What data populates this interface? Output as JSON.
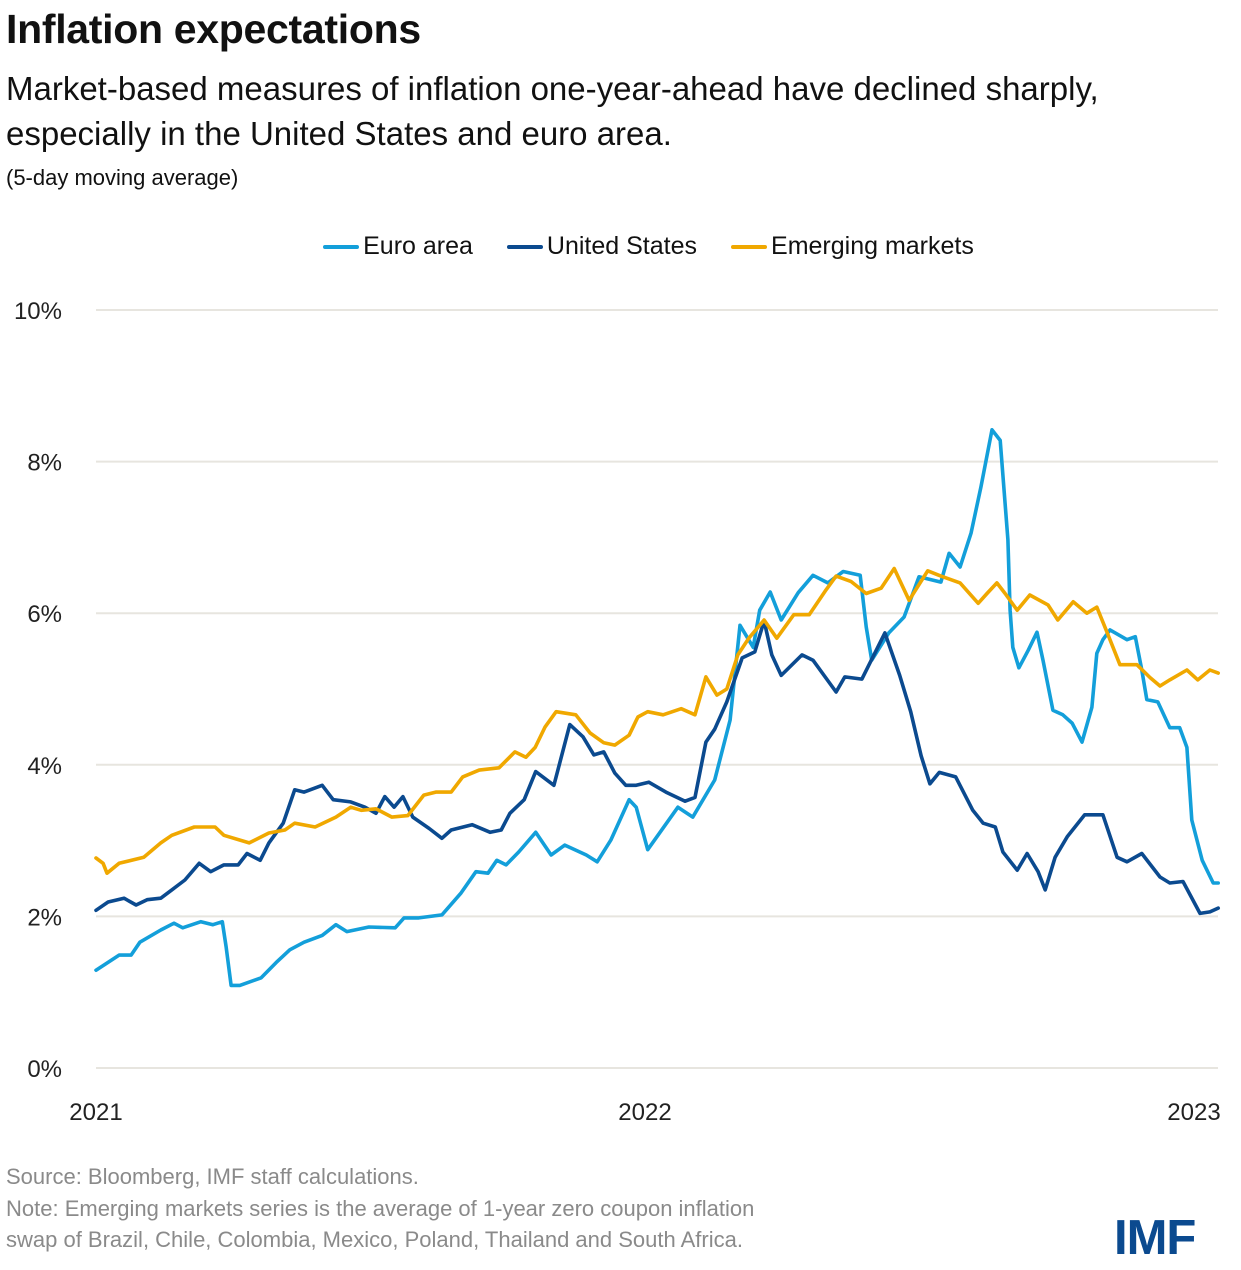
{
  "title": "Inflation expectations",
  "subtitle": "Market-based measures of inflation one-year-ahead have declined sharply, especially in the United States and euro area.",
  "note": "(5-day moving average)",
  "source": "Source: Bloomberg, IMF staff calculations.",
  "footnote_line1": "Note: Emerging markets series is the average of 1-year zero coupon inflation",
  "footnote_line2": "swap of Brazil, Chile, Colombia, Mexico, Poland, Thailand and South Africa.",
  "logo": "IMF",
  "legend": [
    {
      "label": "Euro area",
      "color": "#139fda"
    },
    {
      "label": "United States",
      "color": "#0b4a8f"
    },
    {
      "label": "Emerging markets",
      "color": "#f0a800"
    }
  ],
  "chart_data": {
    "type": "line",
    "title": "Inflation expectations",
    "xlabel": "",
    "ylabel": "",
    "x_ticks": [
      2021,
      2022,
      2023
    ],
    "x_tick_labels": [
      "2021",
      "2022",
      "2023"
    ],
    "xlim": [
      2021.0,
      2023.044
    ],
    "y_ticks": [
      0,
      2,
      4,
      6,
      8,
      10
    ],
    "y_tick_labels": [
      "0%",
      "2%",
      "4%",
      "6%",
      "8%",
      "10%"
    ],
    "ylim": [
      0,
      10
    ],
    "grid": "horizontal",
    "legend_position": "top",
    "series": [
      {
        "name": "Euro area",
        "color": "#139fda",
        "points": [
          [
            2021.0,
            1.29
          ],
          [
            2021.042,
            1.49
          ],
          [
            2021.064,
            1.49
          ],
          [
            2021.08,
            1.66
          ],
          [
            2021.118,
            1.82
          ],
          [
            2021.142,
            1.91
          ],
          [
            2021.158,
            1.85
          ],
          [
            2021.191,
            1.93
          ],
          [
            2021.213,
            1.89
          ],
          [
            2021.23,
            1.93
          ],
          [
            2021.237,
            1.6
          ],
          [
            2021.246,
            1.09
          ],
          [
            2021.262,
            1.09
          ],
          [
            2021.301,
            1.19
          ],
          [
            2021.328,
            1.39
          ],
          [
            2021.353,
            1.56
          ],
          [
            2021.379,
            1.66
          ],
          [
            2021.412,
            1.75
          ],
          [
            2021.437,
            1.89
          ],
          [
            2021.457,
            1.8
          ],
          [
            2021.497,
            1.86
          ],
          [
            2021.545,
            1.85
          ],
          [
            2021.561,
            1.98
          ],
          [
            2021.588,
            1.98
          ],
          [
            2021.63,
            2.02
          ],
          [
            2021.665,
            2.31
          ],
          [
            2021.692,
            2.59
          ],
          [
            2021.714,
            2.57
          ],
          [
            2021.73,
            2.74
          ],
          [
            2021.747,
            2.68
          ],
          [
            2021.77,
            2.85
          ],
          [
            2021.801,
            3.11
          ],
          [
            2021.829,
            2.81
          ],
          [
            2021.854,
            2.94
          ],
          [
            2021.893,
            2.81
          ],
          [
            2021.913,
            2.72
          ],
          [
            2021.938,
            3.01
          ],
          [
            2021.971,
            3.54
          ],
          [
            2021.984,
            3.44
          ],
          [
            2022.005,
            2.88
          ],
          [
            2022.06,
            3.44
          ],
          [
            2022.087,
            3.31
          ],
          [
            2022.127,
            3.8
          ],
          [
            2022.155,
            4.59
          ],
          [
            2022.173,
            5.84
          ],
          [
            2022.197,
            5.55
          ],
          [
            2022.209,
            6.04
          ],
          [
            2022.228,
            6.28
          ],
          [
            2022.248,
            5.91
          ],
          [
            2022.279,
            6.27
          ],
          [
            2022.306,
            6.5
          ],
          [
            2022.333,
            6.4
          ],
          [
            2022.361,
            6.55
          ],
          [
            2022.392,
            6.5
          ],
          [
            2022.403,
            5.82
          ],
          [
            2022.413,
            5.38
          ],
          [
            2022.444,
            5.74
          ],
          [
            2022.472,
            5.95
          ],
          [
            2022.499,
            6.48
          ],
          [
            2022.539,
            6.41
          ],
          [
            2022.554,
            6.79
          ],
          [
            2022.574,
            6.61
          ],
          [
            2022.594,
            7.06
          ],
          [
            2022.612,
            7.67
          ],
          [
            2022.632,
            8.42
          ],
          [
            2022.647,
            8.28
          ],
          [
            2022.661,
            6.97
          ],
          [
            2022.665,
            6.04
          ],
          [
            2022.67,
            5.55
          ],
          [
            2022.681,
            5.28
          ],
          [
            2022.698,
            5.51
          ],
          [
            2022.714,
            5.75
          ],
          [
            2022.725,
            5.38
          ],
          [
            2022.743,
            4.72
          ],
          [
            2022.761,
            4.66
          ],
          [
            2022.778,
            4.55
          ],
          [
            2022.796,
            4.3
          ],
          [
            2022.814,
            4.76
          ],
          [
            2022.823,
            5.47
          ],
          [
            2022.834,
            5.65
          ],
          [
            2022.847,
            5.78
          ],
          [
            2022.878,
            5.65
          ],
          [
            2022.893,
            5.69
          ],
          [
            2022.905,
            5.25
          ],
          [
            2022.914,
            4.86
          ],
          [
            2022.934,
            4.83
          ],
          [
            2022.956,
            4.49
          ],
          [
            2022.974,
            4.49
          ],
          [
            2022.987,
            4.23
          ],
          [
            2022.996,
            3.27
          ],
          [
            2023.015,
            2.74
          ],
          [
            2023.035,
            2.44
          ],
          [
            2023.044,
            2.44
          ]
        ]
      },
      {
        "name": "United States",
        "color": "#0b4a8f",
        "points": [
          [
            2021.0,
            2.08
          ],
          [
            2021.022,
            2.19
          ],
          [
            2021.051,
            2.24
          ],
          [
            2021.073,
            2.15
          ],
          [
            2021.093,
            2.22
          ],
          [
            2021.118,
            2.24
          ],
          [
            2021.138,
            2.35
          ],
          [
            2021.162,
            2.48
          ],
          [
            2021.188,
            2.7
          ],
          [
            2021.209,
            2.59
          ],
          [
            2021.233,
            2.68
          ],
          [
            2021.259,
            2.68
          ],
          [
            2021.275,
            2.83
          ],
          [
            2021.299,
            2.74
          ],
          [
            2021.315,
            2.97
          ],
          [
            2021.341,
            3.23
          ],
          [
            2021.362,
            3.67
          ],
          [
            2021.379,
            3.64
          ],
          [
            2021.412,
            3.73
          ],
          [
            2021.432,
            3.54
          ],
          [
            2021.464,
            3.51
          ],
          [
            2021.49,
            3.44
          ],
          [
            2021.51,
            3.36
          ],
          [
            2021.526,
            3.58
          ],
          [
            2021.543,
            3.44
          ],
          [
            2021.559,
            3.58
          ],
          [
            2021.577,
            3.31
          ],
          [
            2021.607,
            3.16
          ],
          [
            2021.63,
            3.03
          ],
          [
            2021.647,
            3.14
          ],
          [
            2021.685,
            3.21
          ],
          [
            2021.718,
            3.11
          ],
          [
            2021.738,
            3.14
          ],
          [
            2021.754,
            3.36
          ],
          [
            2021.78,
            3.54
          ],
          [
            2021.801,
            3.91
          ],
          [
            2021.834,
            3.73
          ],
          [
            2021.863,
            4.53
          ],
          [
            2021.887,
            4.37
          ],
          [
            2021.907,
            4.13
          ],
          [
            2021.925,
            4.17
          ],
          [
            2021.945,
            3.89
          ],
          [
            2021.965,
            3.73
          ],
          [
            2021.984,
            3.73
          ],
          [
            2022.007,
            3.77
          ],
          [
            2022.038,
            3.64
          ],
          [
            2022.073,
            3.52
          ],
          [
            2022.091,
            3.57
          ],
          [
            2022.111,
            4.3
          ],
          [
            2022.127,
            4.47
          ],
          [
            2022.149,
            4.83
          ],
          [
            2022.177,
            5.41
          ],
          [
            2022.2,
            5.49
          ],
          [
            2022.217,
            5.9
          ],
          [
            2022.231,
            5.45
          ],
          [
            2022.248,
            5.18
          ],
          [
            2022.286,
            5.45
          ],
          [
            2022.306,
            5.38
          ],
          [
            2022.348,
            4.96
          ],
          [
            2022.364,
            5.16
          ],
          [
            2022.395,
            5.13
          ],
          [
            2022.437,
            5.74
          ],
          [
            2022.464,
            5.18
          ],
          [
            2022.484,
            4.7
          ],
          [
            2022.503,
            4.12
          ],
          [
            2022.519,
            3.75
          ],
          [
            2022.536,
            3.9
          ],
          [
            2022.566,
            3.84
          ],
          [
            2022.597,
            3.4
          ],
          [
            2022.616,
            3.23
          ],
          [
            2022.638,
            3.18
          ],
          [
            2022.652,
            2.85
          ],
          [
            2022.678,
            2.61
          ],
          [
            2022.696,
            2.83
          ],
          [
            2022.716,
            2.59
          ],
          [
            2022.729,
            2.35
          ],
          [
            2022.747,
            2.78
          ],
          [
            2022.769,
            3.05
          ],
          [
            2022.801,
            3.34
          ],
          [
            2022.834,
            3.34
          ],
          [
            2022.86,
            2.78
          ],
          [
            2022.878,
            2.72
          ],
          [
            2022.905,
            2.83
          ],
          [
            2022.938,
            2.52
          ],
          [
            2022.956,
            2.44
          ],
          [
            2022.98,
            2.46
          ],
          [
            2023.011,
            2.04
          ],
          [
            2023.029,
            2.06
          ],
          [
            2023.044,
            2.11
          ]
        ]
      },
      {
        "name": "Emerging markets",
        "color": "#f0a800",
        "points": [
          [
            2021.0,
            2.77
          ],
          [
            2021.013,
            2.7
          ],
          [
            2021.02,
            2.57
          ],
          [
            2021.042,
            2.7
          ],
          [
            2021.087,
            2.78
          ],
          [
            2021.118,
            2.97
          ],
          [
            2021.138,
            3.07
          ],
          [
            2021.179,
            3.18
          ],
          [
            2021.217,
            3.18
          ],
          [
            2021.233,
            3.07
          ],
          [
            2021.279,
            2.97
          ],
          [
            2021.315,
            3.1
          ],
          [
            2021.344,
            3.14
          ],
          [
            2021.362,
            3.23
          ],
          [
            2021.399,
            3.18
          ],
          [
            2021.437,
            3.31
          ],
          [
            2021.464,
            3.44
          ],
          [
            2021.483,
            3.4
          ],
          [
            2021.51,
            3.42
          ],
          [
            2021.539,
            3.31
          ],
          [
            2021.568,
            3.33
          ],
          [
            2021.597,
            3.6
          ],
          [
            2021.619,
            3.64
          ],
          [
            2021.647,
            3.64
          ],
          [
            2021.668,
            3.84
          ],
          [
            2021.698,
            3.93
          ],
          [
            2021.734,
            3.96
          ],
          [
            2021.763,
            4.17
          ],
          [
            2021.783,
            4.1
          ],
          [
            2021.8,
            4.23
          ],
          [
            2021.818,
            4.5
          ],
          [
            2021.838,
            4.7
          ],
          [
            2021.874,
            4.66
          ],
          [
            2021.9,
            4.42
          ],
          [
            2021.925,
            4.29
          ],
          [
            2021.945,
            4.26
          ],
          [
            2021.971,
            4.39
          ],
          [
            2021.987,
            4.63
          ],
          [
            2022.005,
            4.7
          ],
          [
            2022.033,
            4.66
          ],
          [
            2022.066,
            4.74
          ],
          [
            2022.091,
            4.66
          ],
          [
            2022.111,
            5.16
          ],
          [
            2022.131,
            4.92
          ],
          [
            2022.149,
            5.0
          ],
          [
            2022.169,
            5.45
          ],
          [
            2022.189,
            5.67
          ],
          [
            2022.217,
            5.91
          ],
          [
            2022.24,
            5.67
          ],
          [
            2022.271,
            5.98
          ],
          [
            2022.299,
            5.98
          ],
          [
            2022.328,
            6.29
          ],
          [
            2022.348,
            6.49
          ],
          [
            2022.375,
            6.42
          ],
          [
            2022.403,
            6.26
          ],
          [
            2022.43,
            6.33
          ],
          [
            2022.454,
            6.59
          ],
          [
            2022.481,
            6.17
          ],
          [
            2022.515,
            6.56
          ],
          [
            2022.539,
            6.49
          ],
          [
            2022.574,
            6.4
          ],
          [
            2022.607,
            6.13
          ],
          [
            2022.623,
            6.26
          ],
          [
            2022.641,
            6.4
          ],
          [
            2022.656,
            6.26
          ],
          [
            2022.678,
            6.04
          ],
          [
            2022.701,
            6.24
          ],
          [
            2022.734,
            6.11
          ],
          [
            2022.752,
            5.91
          ],
          [
            2022.78,
            6.15
          ],
          [
            2022.805,
            6.0
          ],
          [
            2022.823,
            6.08
          ],
          [
            2022.842,
            5.74
          ],
          [
            2022.865,
            5.32
          ],
          [
            2022.896,
            5.32
          ],
          [
            2022.92,
            5.15
          ],
          [
            2022.938,
            5.04
          ],
          [
            2022.956,
            5.12
          ],
          [
            2022.987,
            5.25
          ],
          [
            2023.007,
            5.12
          ],
          [
            2023.029,
            5.25
          ],
          [
            2023.044,
            5.21
          ]
        ]
      }
    ]
  }
}
